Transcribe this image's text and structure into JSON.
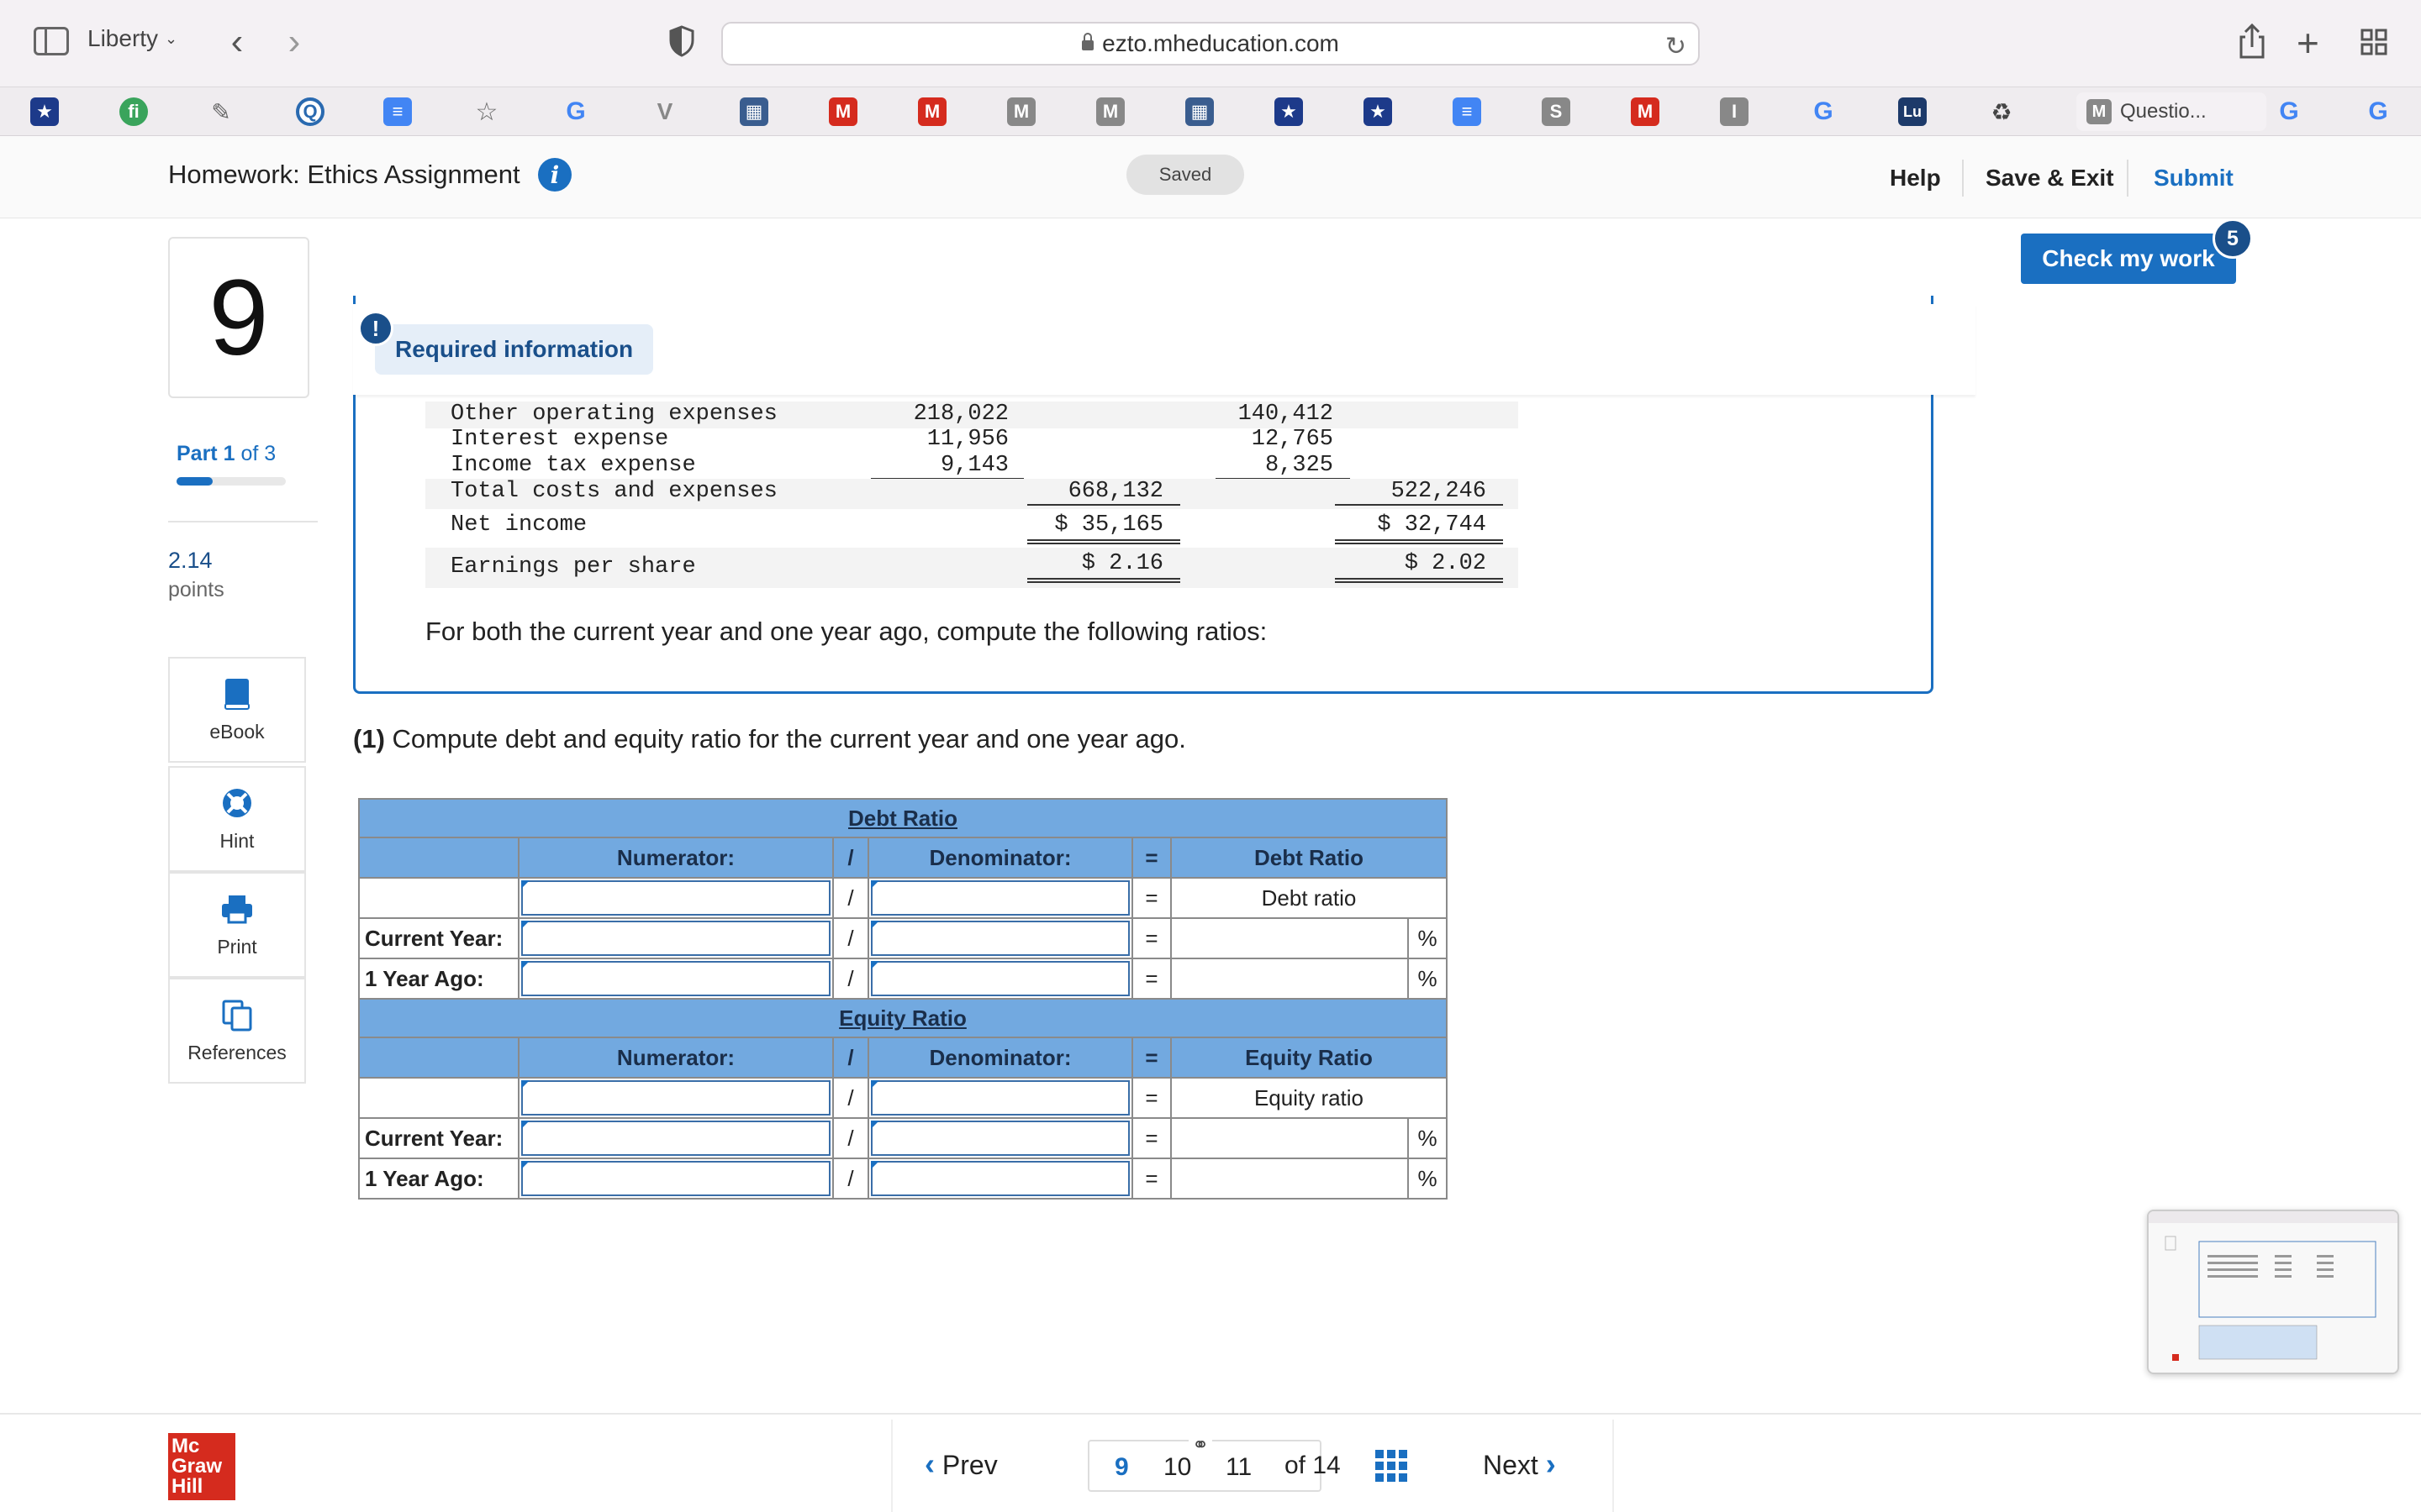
{
  "browser": {
    "profile": "Liberty",
    "url": "ezto.mheducation.com",
    "active_tab": "Questio..."
  },
  "header": {
    "title": "Homework: Ethics Assignment",
    "saved": "Saved",
    "help": "Help",
    "save_exit": "Save & Exit",
    "submit": "Submit"
  },
  "left_panel": {
    "question_number": "9",
    "part_bold": "Part 1",
    "part_rest": "of 3",
    "part_progress": 0.333,
    "points_value": "2.14",
    "points_label": "points",
    "tools": [
      "eBook",
      "Hint",
      "Print",
      "References"
    ]
  },
  "check_my_work": {
    "label": "Check my work",
    "badge": "5"
  },
  "required_info": {
    "label": "Required information",
    "badge": "!",
    "rows": [
      {
        "label": "Other operating expenses",
        "a": "218,022",
        "b": "",
        "c": "140,412",
        "d": ""
      },
      {
        "label": "Interest expense",
        "a": "11,956",
        "b": "",
        "c": "12,765",
        "d": ""
      },
      {
        "label": "Income tax expense",
        "a": "9,143",
        "b": "",
        "c": "8,325",
        "d": ""
      },
      {
        "label": "Total costs and expenses",
        "a": "",
        "b": "668,132",
        "c": "",
        "d": "522,246"
      },
      {
        "label": "Net income",
        "a": "",
        "b": "$ 35,165",
        "c": "",
        "d": "$ 32,744"
      },
      {
        "label": "Earnings per share",
        "a": "",
        "b": "$ 2.16",
        "c": "",
        "d": "$ 2.02"
      }
    ],
    "instruction": "For both the current year and one year ago, compute the following ratios:"
  },
  "question": {
    "number": "(1)",
    "text": "Compute debt and equity ratio for the current year and one year ago."
  },
  "debt_table": {
    "title": "Debt Ratio",
    "numerator": "Numerator:",
    "slash": "/",
    "denominator": "Denominator:",
    "equals": "=",
    "result_header": "Debt Ratio",
    "result_label": "Debt ratio",
    "rows": [
      "Current Year:",
      "1 Year Ago:"
    ],
    "percent": "%"
  },
  "equity_table": {
    "title": "Equity Ratio",
    "numerator": "Numerator:",
    "slash": "/",
    "denominator": "Denominator:",
    "equals": "=",
    "result_header": "Equity Ratio",
    "result_label": "Equity ratio",
    "rows": [
      "Current Year:",
      "1 Year Ago:"
    ],
    "percent": "%"
  },
  "footer": {
    "logo": [
      "Mc",
      "Graw",
      "Hill"
    ],
    "prev": "Prev",
    "pages": [
      "9",
      "10",
      "11"
    ],
    "of_total": "of 14",
    "next": "Next"
  },
  "colors": {
    "accent": "#1a6fc1",
    "table_header": "#72a9e0",
    "brand_red": "#d52b1e"
  }
}
